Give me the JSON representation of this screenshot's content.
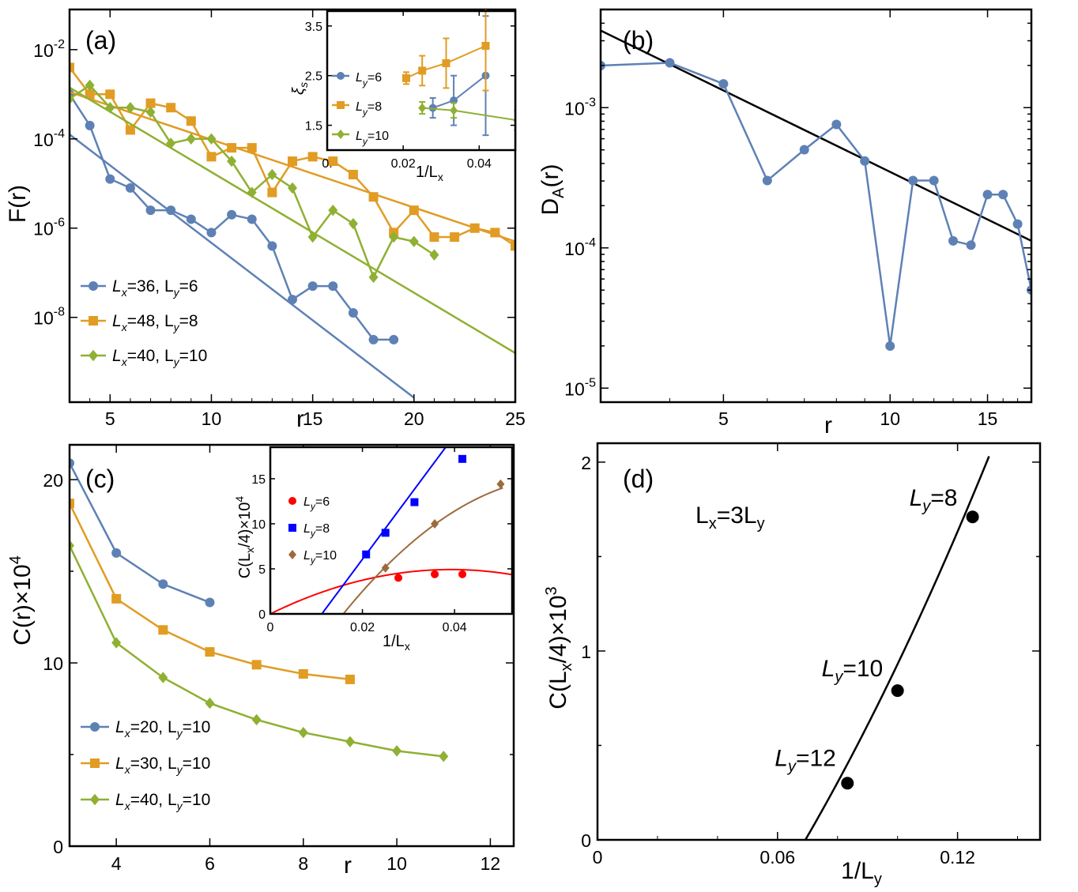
{
  "colors": {
    "blue": "#5E81B5",
    "orange": "#E19C24",
    "green": "#8FB032",
    "red": "#FF0000",
    "pureblue": "#0000FF",
    "brown": "#9C6B3C",
    "black": "#000000"
  },
  "panels": {
    "a": {
      "label": "(a)",
      "chart_data": {
        "type": "line",
        "yscale": "log",
        "xlabel": "r",
        "ylabel": "F(r)",
        "xlim": [
          3,
          25
        ],
        "ylim_log10": [
          -9.9,
          -1.1
        ],
        "xticks": [
          5,
          10,
          15,
          20,
          25
        ],
        "xtick_labels": [
          "5",
          "10",
          "15",
          "20",
          "25"
        ],
        "yticks_log10": [
          -2,
          -4,
          -6,
          -8
        ],
        "ytick_labels": [
          "10-2",
          "10-4",
          "10-6",
          "10-8"
        ],
        "series": [
          {
            "name": "Lx=36, Ly=6",
            "legend_main": "L",
            "legend_sub1": "x",
            "legend_mid": "=36, L",
            "legend_sub2": "y",
            "legend_end": "=6",
            "color_key": "blue",
            "marker": "circle",
            "x": [
              3,
              4,
              5,
              6,
              7,
              8,
              9,
              10,
              11,
              12,
              13,
              14,
              15,
              16,
              17,
              18,
              19
            ],
            "log10y": [
              -3.0,
              -3.7,
              -4.9,
              -5.1,
              -5.6,
              -5.6,
              -5.8,
              -6.1,
              -5.7,
              -5.8,
              -6.4,
              -7.6,
              -7.3,
              -7.3,
              -7.9,
              -8.5,
              -8.5
            ],
            "fit_log10": [
              [
                3,
                -3.9
              ],
              [
                20,
                -9.8
              ]
            ]
          },
          {
            "name": "Lx=48, Ly=8",
            "legend_main": "L",
            "legend_sub1": "x",
            "legend_mid": "=48, L",
            "legend_sub2": "y",
            "legend_end": "=8",
            "color_key": "orange",
            "marker": "square",
            "x": [
              3,
              4,
              5,
              6,
              7,
              8,
              9,
              10,
              11,
              12,
              13,
              14,
              15,
              16,
              17,
              18,
              19,
              20,
              21,
              22,
              23,
              24,
              25
            ],
            "log10y": [
              -2.4,
              -3.0,
              -3.0,
              -3.8,
              -3.2,
              -3.3,
              -3.6,
              -4.4,
              -4.2,
              -4.2,
              -5.2,
              -4.5,
              -4.4,
              -4.5,
              -4.8,
              -5.3,
              -6.1,
              -5.6,
              -6.2,
              -6.2,
              -6.0,
              -6.1,
              -6.4
            ],
            "fit_log10": [
              [
                3,
                -2.95
              ],
              [
                25,
                -6.3
              ]
            ]
          },
          {
            "name": "Lx=40, Ly=10",
            "legend_main": "L",
            "legend_sub1": "x",
            "legend_mid": "=40, L",
            "legend_sub2": "y",
            "legend_end": "=10",
            "color_key": "green",
            "marker": "diamond",
            "x": [
              3,
              4,
              5,
              6,
              7,
              8,
              9,
              10,
              11,
              12,
              13,
              14,
              15,
              16,
              17,
              18,
              19,
              20,
              21
            ],
            "log10y": [
              -3.1,
              -2.8,
              -3.3,
              -3.3,
              -3.4,
              -4.1,
              -4.0,
              -4.0,
              -4.5,
              -5.2,
              -4.8,
              -5.1,
              -6.2,
              -5.6,
              -5.9,
              -7.1,
              -6.2,
              -6.3,
              -6.6
            ],
            "fit_log10": [
              [
                3,
                -2.85
              ],
              [
                25,
                -8.8
              ]
            ]
          }
        ]
      },
      "inset": {
        "chart_data": {
          "type": "scatter",
          "xlabel": "1/Lx",
          "xlabel_main": "1/L",
          "xlabel_sub": "x",
          "ylabel": "ξs",
          "ylabel_main": "ξ",
          "ylabel_sub": "s",
          "xlim": [
            0,
            0.0495
          ],
          "ylim": [
            1.0,
            3.8
          ],
          "xticks": [
            0,
            0.02,
            0.04
          ],
          "xtick_labels": [
            "0.",
            "0.02",
            "0.04"
          ],
          "yticks": [
            1.5,
            2.5,
            3.5
          ],
          "ytick_labels": [
            "1.5",
            "2.5",
            "3.5"
          ],
          "series": [
            {
              "name": "Ly=6",
              "legend_main": "L",
              "legend_sub": "y",
              "legend_end": "=6",
              "color_key": "blue",
              "marker": "circle",
              "x": [
                0.0278,
                0.0333,
                0.0417
              ],
              "y": [
                1.85,
                2.0,
                2.5
              ],
              "err": [
                0.2,
                0.5,
                1.2
              ]
            },
            {
              "name": "Ly=8",
              "legend_main": "L",
              "legend_sub": "y",
              "legend_end": "=8",
              "color_key": "orange",
              "marker": "square",
              "x": [
                0.0208,
                0.025,
                0.0313,
                0.0417
              ],
              "y": [
                2.45,
                2.6,
                2.75,
                3.1
              ],
              "err": [
                0.12,
                0.3,
                0.5,
                0.9
              ]
            },
            {
              "name": "Ly=10",
              "legend_main": "L",
              "legend_sub": "y",
              "legend_end": "=10",
              "color_key": "green",
              "marker": "diamond",
              "x": [
                0.025,
                0.0333,
                0.05
              ],
              "y": [
                1.85,
                1.8,
                1.6
              ],
              "err": [
                0.12,
                0.15,
                0.2
              ]
            }
          ]
        }
      }
    },
    "b": {
      "label": "(b)",
      "chart_data": {
        "type": "line",
        "yscale": "log",
        "xscale": "log",
        "xlabel": "r",
        "ylabel": "DA(r)",
        "ylabel_main": "D",
        "ylabel_sub": "A",
        "ylabel_end": "(r)",
        "xlim": [
          3,
          18
        ],
        "ylim_log10": [
          -5.1,
          -2.3
        ],
        "xticks": [
          5,
          10,
          15
        ],
        "xtick_labels": [
          "5",
          "10",
          "15"
        ],
        "yticks_log10": [
          -3,
          -4,
          -5
        ],
        "ytick_labels": [
          "10-3",
          "10-4",
          "10-5"
        ],
        "series": [
          {
            "name": "DA",
            "color_key": "blue",
            "marker": "circle",
            "x": [
              3,
              4,
              5,
              6,
              7,
              8,
              9,
              10,
              11,
              12,
              13,
              14,
              15,
              16,
              17,
              18
            ],
            "log10y": [
              -2.7,
              -2.68,
              -2.83,
              -3.52,
              -3.3,
              -3.12,
              -3.38,
              -4.7,
              -3.52,
              -3.52,
              -3.95,
              -3.98,
              -3.62,
              -3.62,
              -3.83,
              -4.3
            ]
          }
        ],
        "fit_log10": [
          [
            3,
            -2.45
          ],
          [
            18,
            -3.95
          ]
        ]
      }
    },
    "c": {
      "label": "(c)",
      "chart_data": {
        "type": "line",
        "xlabel": "r",
        "ylabel": "C(r)×104",
        "ylabel_main": "C(r)×10",
        "ylabel_sup": "4",
        "xlim": [
          3,
          12.5
        ],
        "ylim": [
          0,
          21.9
        ],
        "xticks": [
          4,
          6,
          8,
          10,
          12
        ],
        "xtick_labels": [
          "4",
          "6",
          "8",
          "10",
          "12"
        ],
        "yticks": [
          0,
          10,
          20
        ],
        "ytick_labels": [
          "0",
          "10",
          "20"
        ],
        "series": [
          {
            "name": "Lx=20, Ly=10",
            "legend_main": "L",
            "legend_sub1": "x",
            "legend_mid": "=20, L",
            "legend_sub2": "y",
            "legend_end": "=10",
            "color_key": "blue",
            "marker": "circle",
            "x": [
              3,
              4,
              5,
              6
            ],
            "y": [
              20.9,
              16.0,
              14.3,
              13.3
            ]
          },
          {
            "name": "Lx=30, Ly=10",
            "legend_main": "L",
            "legend_sub1": "x",
            "legend_mid": "=30, L",
            "legend_sub2": "y",
            "legend_end": "=10",
            "color_key": "orange",
            "marker": "square",
            "x": [
              3,
              4,
              5,
              6,
              7,
              8,
              9
            ],
            "y": [
              18.7,
              13.5,
              11.8,
              10.6,
              9.9,
              9.4,
              9.1
            ]
          },
          {
            "name": "Lx=40, Ly=10",
            "legend_main": "L",
            "legend_sub1": "x",
            "legend_mid": "=40, L",
            "legend_sub2": "y",
            "legend_end": "=10",
            "color_key": "green",
            "marker": "diamond",
            "x": [
              3,
              4,
              5,
              6,
              7,
              8,
              9,
              10,
              11
            ],
            "y": [
              16.4,
              11.1,
              9.2,
              7.8,
              6.9,
              6.2,
              5.7,
              5.2,
              4.9
            ]
          }
        ]
      },
      "inset": {
        "chart_data": {
          "type": "scatter",
          "xlabel": "1/Lx",
          "xlabel_main": "1/L",
          "xlabel_sub": "x",
          "ylabel": "C(Lx/4)×104",
          "xlim": [
            0,
            0.0525
          ],
          "ylim": [
            0,
            18.5
          ],
          "xticks": [
            0,
            0.02,
            0.04
          ],
          "xtick_labels": [
            "0",
            "0.02",
            "0.04"
          ],
          "yticks": [
            0,
            5,
            10,
            15
          ],
          "ytick_labels": [
            "0",
            "5",
            "10",
            "15"
          ],
          "series": [
            {
              "name": "Ly=6",
              "legend_main": "L",
              "legend_sub": "y",
              "legend_end": "=6",
              "color_key": "red",
              "marker": "circle",
              "x": [
                0.0278,
                0.0357,
                0.0417
              ],
              "y": [
                4.0,
                4.4,
                4.4
              ],
              "curve": {
                "kind": "quad",
                "x0": 0,
                "x1": 0.0525,
                "a": -3200,
                "b": 251,
                "c": 0
              }
            },
            {
              "name": "Ly=8",
              "legend_main": "L",
              "legend_sub": "y",
              "legend_end": "=8",
              "color_key": "pureblue",
              "marker": "square",
              "x": [
                0.0208,
                0.025,
                0.0313,
                0.0417
              ],
              "y": [
                6.6,
                9.0,
                12.4,
                17.2
              ],
              "curve": {
                "kind": "quad",
                "x0": 0.0112,
                "x1": 0.047,
                "a": 0,
                "b": 688,
                "c": -7.7
              }
            },
            {
              "name": "Ly=10",
              "legend_main": "L",
              "legend_sub": "y",
              "legend_end": "=10",
              "color_key": "brown",
              "marker": "diamond",
              "x": [
                0.025,
                0.0357,
                0.05
              ],
              "y": [
                5.1,
                10.0,
                14.4
              ],
              "curve": {
                "kind": "quad",
                "x0": 0.0158,
                "x1": 0.0505,
                "a": -6500,
                "b": 835,
                "c": -11.6
              }
            }
          ]
        }
      }
    },
    "d": {
      "label": "(d)",
      "annotation_main": "L",
      "annotation_sub": "x",
      "annotation_end": "=3L",
      "annotation_sub2": "y",
      "chart_data": {
        "type": "scatter",
        "xlabel": "1/Ly",
        "xlabel_main": "1/L",
        "xlabel_sub": "y",
        "ylabel": "C(Lx/4)×103",
        "xlim": [
          0,
          0.1475
        ],
        "ylim": [
          0,
          2.1
        ],
        "xticks": [
          0,
          0.06,
          0.12
        ],
        "xtick_labels": [
          "0",
          "0.06",
          "0.12"
        ],
        "yticks": [
          0,
          1,
          2
        ],
        "ytick_labels": [
          "0",
          "1",
          "2"
        ],
        "points": [
          {
            "label": "Ly=12",
            "label_main": "L",
            "label_sub": "y",
            "label_end": "=12",
            "x": 0.0833,
            "y": 0.3
          },
          {
            "label": "Ly=10",
            "label_main": "L",
            "label_sub": "y",
            "label_end": "=10",
            "x": 0.1,
            "y": 0.79
          },
          {
            "label": "Ly=8",
            "label_main": "L",
            "label_sub": "y",
            "label_end": "=8",
            "x": 0.125,
            "y": 1.71
          }
        ],
        "curve": {
          "x0": 0.0693,
          "x1": 0.1305,
          "a": 95,
          "b": 14.2,
          "c": -1.44
        }
      }
    }
  }
}
